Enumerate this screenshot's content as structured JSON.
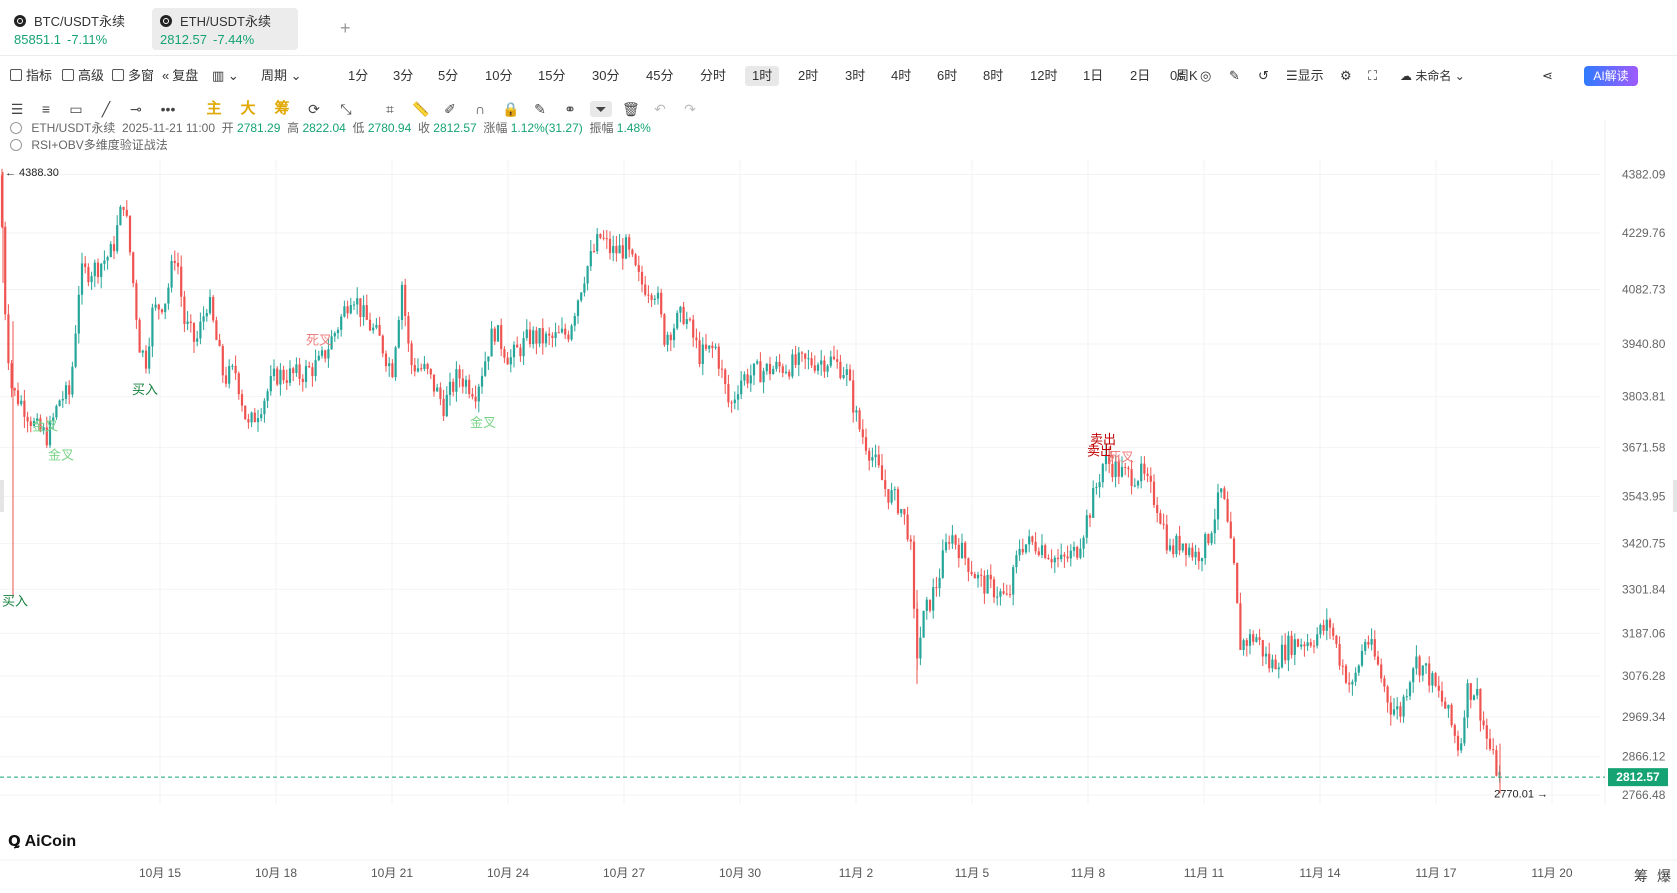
{
  "tabs": [
    {
      "name": "BTC/USDT永续",
      "price": "85851.1",
      "change": "-7.11%"
    },
    {
      "name": "ETH/USDT永续",
      "price": "2812.57",
      "change": "-7.44%"
    }
  ],
  "toolbar": {
    "indicator": "指标",
    "advanced": "高级",
    "multiwin": "多窗",
    "replay": "复盘",
    "period": "周期",
    "intervals": [
      "1分",
      "3分",
      "5分",
      "10分",
      "15分",
      "30分",
      "45分",
      "分时",
      "1时",
      "2时",
      "3时",
      "4时",
      "6时",
      "8时",
      "12时",
      "1日",
      "2日",
      "周K"
    ],
    "active_interval": "1时",
    "countdown": "0s",
    "display": "显示",
    "unnamed": "未命名",
    "ai": "AI解读"
  },
  "tools2": {
    "main": "主",
    "big": "大",
    "chip": "筹"
  },
  "info": {
    "symbol": "ETH/USDT永续",
    "time": "2025-11-21 11:00",
    "open_l": "开",
    "open": "2781.29",
    "high_l": "高",
    "high": "2822.04",
    "low_l": "低",
    "low": "2780.94",
    "close_l": "收",
    "close": "2812.57",
    "chg_l": "涨幅",
    "chg": "1.12%(31.27)",
    "amp_l": "振幅",
    "amp": "1.48%",
    "strategy": "RSI+OBV多维度验证战法"
  },
  "colors": {
    "up": "#26a69a",
    "down": "#ef5350",
    "accent": "#15a374"
  },
  "chart_data": {
    "type": "candlestick",
    "price_labels": [
      "4382.09",
      "4229.76",
      "4082.73",
      "3940.80",
      "3803.81",
      "3671.58",
      "3543.95",
      "3420.75",
      "3301.84",
      "3187.06",
      "3076.28",
      "2969.34",
      "2866.12",
      "2766.48"
    ],
    "x_labels": [
      "10月 15",
      "10月 18",
      "10月 21",
      "10月 24",
      "10月 27",
      "10月 30",
      "11月 2",
      "11月 5",
      "11月 8",
      "11月 11",
      "11月 14",
      "11月 17",
      "11月 20"
    ],
    "last_price": "2812.57",
    "max_mark": "4388.30",
    "min_mark": "2770.01",
    "ylim": [
      2740,
      4420
    ],
    "anchors": [
      [
        0,
        4380
      ],
      [
        6,
        3980
      ],
      [
        12,
        3820
      ],
      [
        24,
        3780
      ],
      [
        36,
        3720
      ],
      [
        48,
        3700
      ],
      [
        60,
        3800
      ],
      [
        70,
        3810
      ],
      [
        80,
        4120
      ],
      [
        96,
        4140
      ],
      [
        112,
        4180
      ],
      [
        124,
        4320
      ],
      [
        130,
        4180
      ],
      [
        140,
        3930
      ],
      [
        146,
        3900
      ],
      [
        152,
        4020
      ],
      [
        166,
        4060
      ],
      [
        176,
        4190
      ],
      [
        184,
        4000
      ],
      [
        196,
        3940
      ],
      [
        208,
        4060
      ],
      [
        224,
        3850
      ],
      [
        236,
        3870
      ],
      [
        248,
        3720
      ],
      [
        260,
        3780
      ],
      [
        276,
        3860
      ],
      [
        300,
        3860
      ],
      [
        320,
        3890
      ],
      [
        340,
        4000
      ],
      [
        352,
        4080
      ],
      [
        364,
        4010
      ],
      [
        380,
        3950
      ],
      [
        392,
        3870
      ],
      [
        402,
        4100
      ],
      [
        410,
        3890
      ],
      [
        426,
        3870
      ],
      [
        444,
        3780
      ],
      [
        458,
        3860
      ],
      [
        476,
        3820
      ],
      [
        494,
        3980
      ],
      [
        510,
        3900
      ],
      [
        530,
        3960
      ],
      [
        550,
        3950
      ],
      [
        568,
        3970
      ],
      [
        584,
        4120
      ],
      [
        600,
        4220
      ],
      [
        612,
        4180
      ],
      [
        626,
        4190
      ],
      [
        640,
        4100
      ],
      [
        656,
        4080
      ],
      [
        664,
        3960
      ],
      [
        684,
        4020
      ],
      [
        700,
        3910
      ],
      [
        716,
        3930
      ],
      [
        730,
        3770
      ],
      [
        740,
        3850
      ],
      [
        760,
        3870
      ],
      [
        780,
        3880
      ],
      [
        800,
        3890
      ],
      [
        830,
        3900
      ],
      [
        846,
        3870
      ],
      [
        858,
        3730
      ],
      [
        872,
        3650
      ],
      [
        886,
        3560
      ],
      [
        900,
        3520
      ],
      [
        910,
        3440
      ],
      [
        916,
        3120
      ],
      [
        924,
        3230
      ],
      [
        936,
        3310
      ],
      [
        950,
        3450
      ],
      [
        964,
        3390
      ],
      [
        980,
        3320
      ],
      [
        996,
        3300
      ],
      [
        1008,
        3270
      ],
      [
        1020,
        3420
      ],
      [
        1040,
        3420
      ],
      [
        1060,
        3370
      ],
      [
        1076,
        3400
      ],
      [
        1090,
        3510
      ],
      [
        1104,
        3640
      ],
      [
        1124,
        3600
      ],
      [
        1142,
        3600
      ],
      [
        1158,
        3520
      ],
      [
        1170,
        3400
      ],
      [
        1182,
        3430
      ],
      [
        1196,
        3390
      ],
      [
        1206,
        3420
      ],
      [
        1222,
        3560
      ],
      [
        1234,
        3350
      ],
      [
        1240,
        3160
      ],
      [
        1256,
        3180
      ],
      [
        1270,
        3100
      ],
      [
        1290,
        3160
      ],
      [
        1310,
        3170
      ],
      [
        1330,
        3210
      ],
      [
        1340,
        3120
      ],
      [
        1352,
        3040
      ],
      [
        1366,
        3180
      ],
      [
        1378,
        3100
      ],
      [
        1390,
        3000
      ],
      [
        1400,
        2980
      ],
      [
        1414,
        3120
      ],
      [
        1426,
        3090
      ],
      [
        1446,
        2990
      ],
      [
        1460,
        2880
      ],
      [
        1466,
        3040
      ],
      [
        1476,
        3040
      ],
      [
        1486,
        2920
      ],
      [
        1494,
        2850
      ],
      [
        1500,
        2812
      ]
    ],
    "annotations": [
      {
        "text": "买入",
        "x": 2,
        "y": 3260,
        "color": "#15803d"
      },
      {
        "text": "金叉",
        "x": 32,
        "y": 3715,
        "color": "#7bd389"
      },
      {
        "text": "金叉",
        "x": 48,
        "y": 3640,
        "color": "#7bd389"
      },
      {
        "text": "买入",
        "x": 132,
        "y": 3810,
        "color": "#15803d"
      },
      {
        "text": "死叉",
        "x": 306,
        "y": 3940,
        "color": "#f08080"
      },
      {
        "text": "金叉",
        "x": 470,
        "y": 3725,
        "color": "#7bd389"
      },
      {
        "text": "卖出",
        "x": 1090,
        "y": 3680,
        "color": "#c00000"
      },
      {
        "text": "卖出",
        "x": 1087,
        "y": 3650,
        "color": "#c00000"
      },
      {
        "text": "死叉",
        "x": 1108,
        "y": 3635,
        "color": "#f08080"
      }
    ]
  },
  "logo": "AiCoin",
  "bottom_right": [
    "筹",
    "爆"
  ]
}
